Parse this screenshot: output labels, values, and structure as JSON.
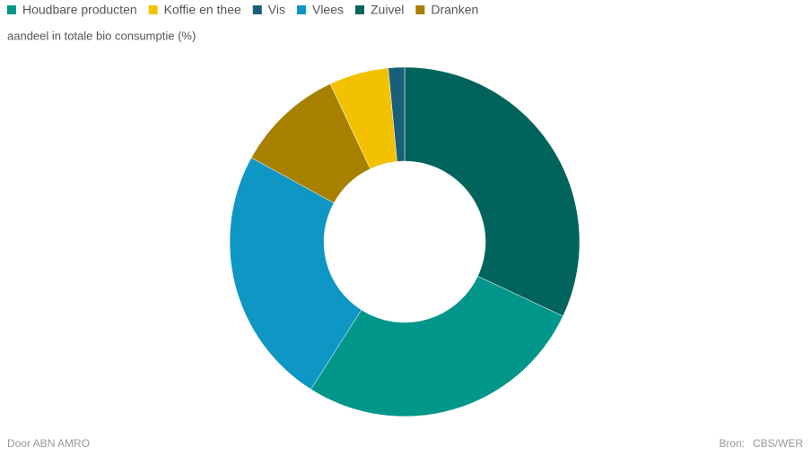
{
  "chart_data": {
    "type": "donut",
    "subtitle": "aandeel in totale bio consumptie (%)",
    "series": [
      {
        "name": "Houdbare producten",
        "color": "#00968a",
        "value": 27
      },
      {
        "name": "Koffie en thee",
        "color": "#f2c200",
        "value": 5.5
      },
      {
        "name": "Vis",
        "color": "#1a5f7a",
        "value": 1.5
      },
      {
        "name": "Vlees",
        "color": "#0e96c4",
        "value": 24
      },
      {
        "name": "Zuivel",
        "color": "#00645c",
        "value": 32
      },
      {
        "name": "Dranken",
        "color": "#a88000",
        "value": 10
      }
    ],
    "credit": "Door ABN AMRO",
    "source_label": "Bron:",
    "source": "CBS/WER"
  }
}
